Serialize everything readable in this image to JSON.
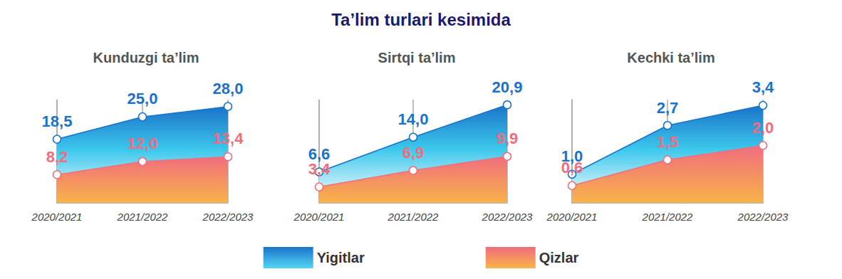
{
  "title": "Ta’lim turlari kesimida",
  "chart_data": [
    {
      "type": "area",
      "title": "Kunduzgi ta’lim",
      "categories": [
        "2020/2021",
        "2021/2022",
        "2022/2023"
      ],
      "series": [
        {
          "name": "Yigitlar",
          "color": "#1a73c9",
          "values": [
            18.5,
            25.0,
            28.0
          ],
          "value_labels": [
            "18,5",
            "25,0",
            "28,0"
          ]
        },
        {
          "name": "Qizlar",
          "color": "#f06d7e",
          "values": [
            8.2,
            12.0,
            13.4
          ],
          "value_labels": [
            "8,2",
            "12,0",
            "13,4"
          ]
        }
      ],
      "ylim": [
        0,
        30
      ],
      "yticks": [],
      "tick_labels": "x",
      "data_labels": true,
      "legend": "bottom"
    },
    {
      "type": "area",
      "title": "Sirtqi ta’lim",
      "categories": [
        "2020/2021",
        "2021/2022",
        "2022/2023"
      ],
      "series": [
        {
          "name": "Yigitlar",
          "color": "#1a73c9",
          "values": [
            6.6,
            14.0,
            20.9
          ],
          "value_labels": [
            "6,6",
            "14,0",
            "20,9"
          ]
        },
        {
          "name": "Qizlar",
          "color": "#f06d7e",
          "values": [
            3.4,
            6.9,
            9.9
          ],
          "value_labels": [
            "3,4",
            "6,9",
            "9,9"
          ]
        }
      ],
      "ylim": [
        0,
        22
      ],
      "yticks": [],
      "tick_labels": "x",
      "data_labels": true,
      "legend": "bottom"
    },
    {
      "type": "area",
      "title": "Kechki ta’lim",
      "categories": [
        "2020/2021",
        "2021/2022",
        "2022/2023"
      ],
      "series": [
        {
          "name": "Yigitlar",
          "color": "#1a73c9",
          "values": [
            1.0,
            2.7,
            3.4
          ],
          "value_labels": [
            "1,0",
            "2,7",
            "3,4"
          ]
        },
        {
          "name": "Qizlar",
          "color": "#f06d7e",
          "values": [
            0.6,
            1.5,
            2.0
          ],
          "value_labels": [
            "0,6",
            "1,5",
            "2,0"
          ]
        }
      ],
      "ylim": [
        0,
        3.6
      ],
      "yticks": [],
      "tick_labels": "x",
      "data_labels": true,
      "legend": "bottom"
    }
  ]
}
